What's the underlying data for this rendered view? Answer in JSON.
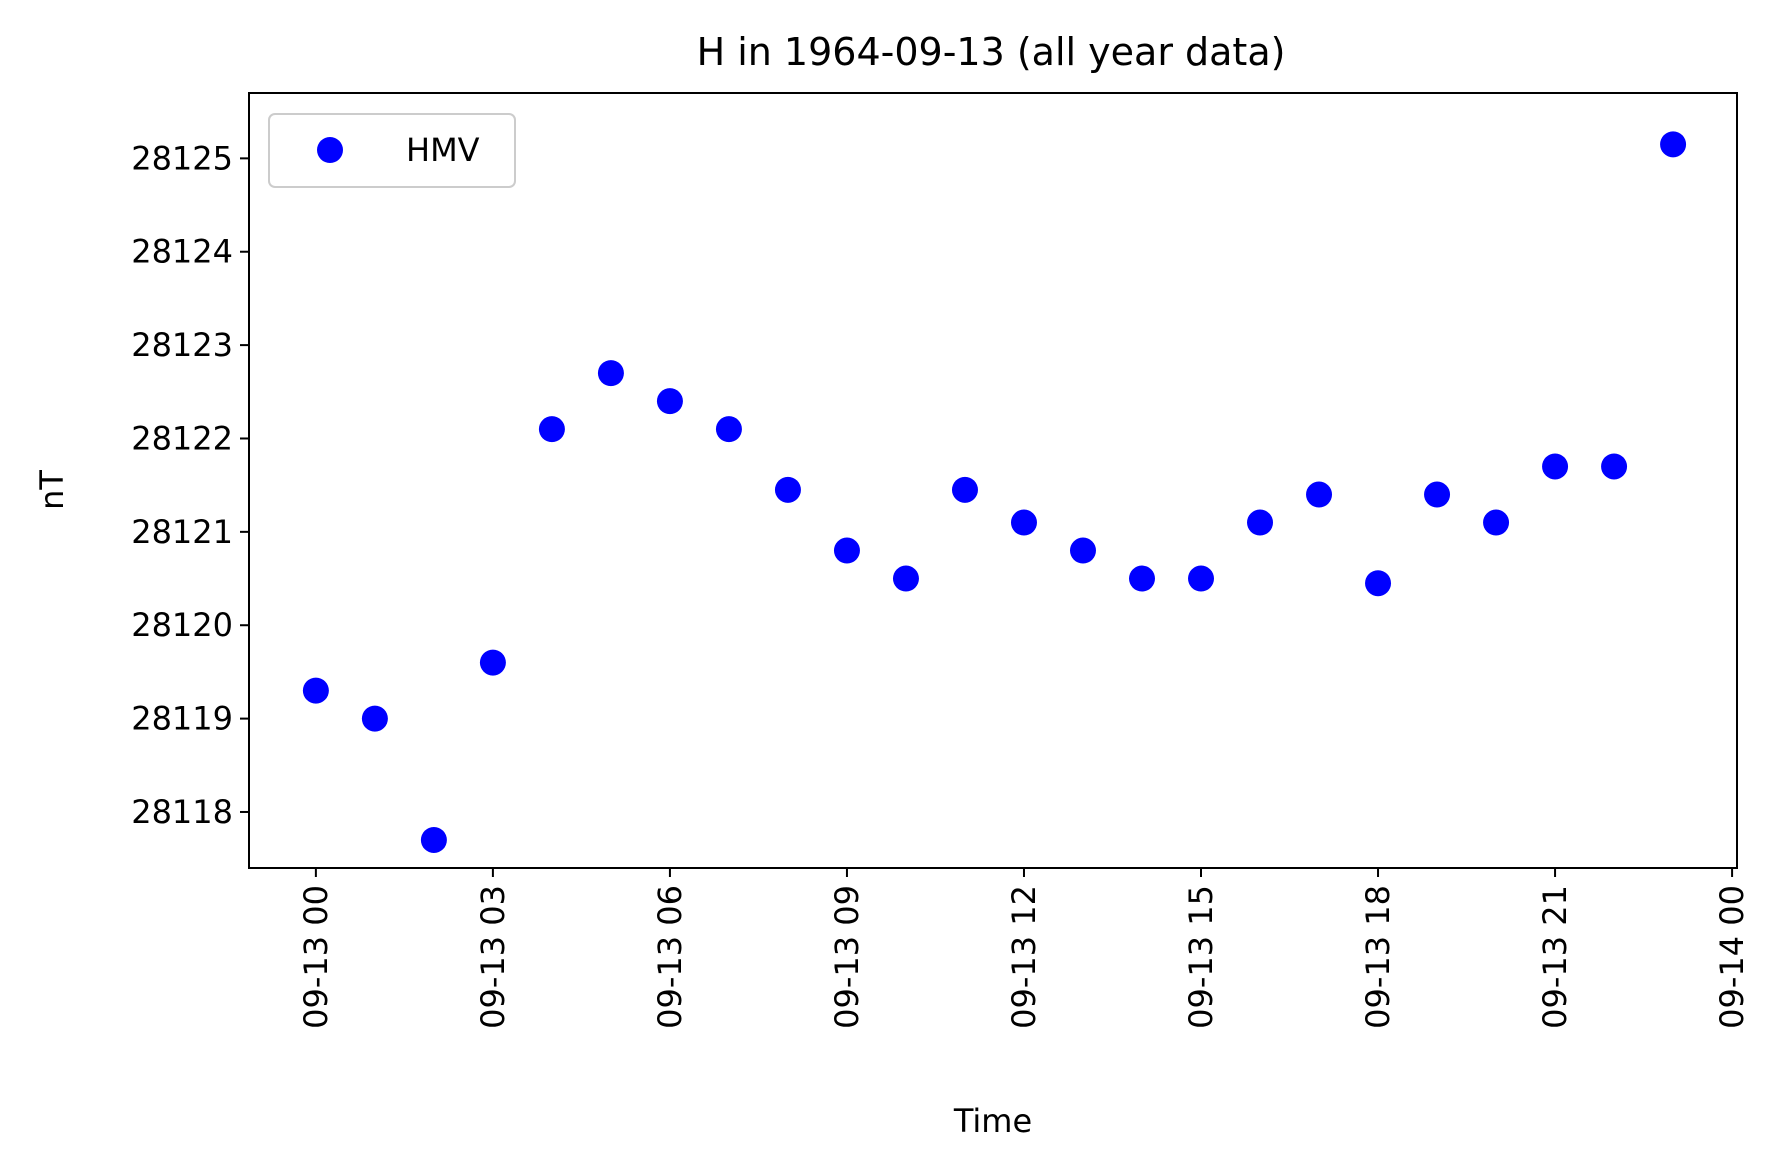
{
  "chart_data": {
    "type": "scatter",
    "title": "H in 1964-09-13 (all year data)",
    "xlabel": "Time",
    "ylabel": "nT",
    "x_ticks": [
      "09-13 00",
      "09-13 03",
      "09-13 06",
      "09-13 09",
      "09-13 12",
      "09-13 15",
      "09-13 18",
      "09-13 21",
      "09-14 00"
    ],
    "y_ticks": [
      "28118",
      "28119",
      "28120",
      "28121",
      "28122",
      "28123",
      "28124",
      "28125"
    ],
    "xlim": [
      "1964-09-12 22:52",
      "1964-09-14 00:05"
    ],
    "ylim": [
      28117.4,
      28125.7
    ],
    "legend": {
      "position": "upper-left",
      "entries": [
        "HMV"
      ]
    },
    "grid": false,
    "series": [
      {
        "name": "HMV",
        "color": "#0000ff",
        "marker": "circle",
        "x": [
          "1964-09-13 00:00",
          "1964-09-13 01:00",
          "1964-09-13 02:00",
          "1964-09-13 03:00",
          "1964-09-13 04:00",
          "1964-09-13 05:00",
          "1964-09-13 06:00",
          "1964-09-13 07:00",
          "1964-09-13 08:00",
          "1964-09-13 09:00",
          "1964-09-13 10:00",
          "1964-09-13 11:00",
          "1964-09-13 12:00",
          "1964-09-13 13:00",
          "1964-09-13 14:00",
          "1964-09-13 15:00",
          "1964-09-13 16:00",
          "1964-09-13 17:00",
          "1964-09-13 18:00",
          "1964-09-13 19:00",
          "1964-09-13 20:00",
          "1964-09-13 21:00",
          "1964-09-13 22:00",
          "1964-09-13 23:00"
        ],
        "y": [
          28119.3,
          28119.0,
          28117.7,
          28119.6,
          28122.1,
          28122.7,
          28122.4,
          28122.1,
          28121.45,
          28120.8,
          28120.5,
          28121.45,
          28121.1,
          28120.8,
          28120.5,
          28120.5,
          28121.1,
          28121.4,
          28120.45,
          28121.4,
          28121.1,
          28121.7,
          28121.7,
          28125.15
        ]
      }
    ]
  }
}
